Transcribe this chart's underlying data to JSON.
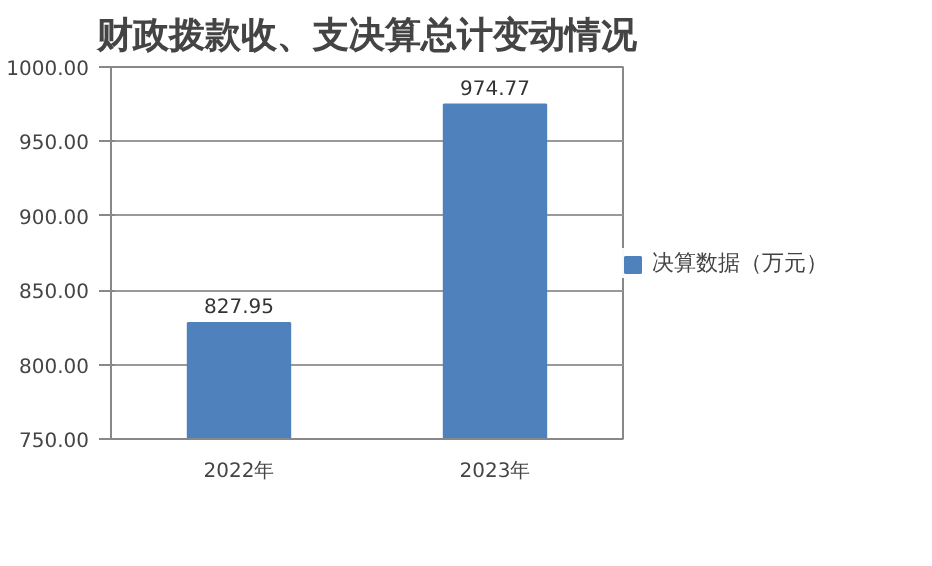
{
  "chart_data": {
    "type": "bar",
    "title": "财政拨款收、支决算总计变动情况",
    "categories": [
      "2022年",
      "2023年"
    ],
    "series": [
      {
        "name": "决算数据（万元）",
        "color": "#4f81bd",
        "values": [
          827.95,
          974.77
        ]
      }
    ],
    "ylim": [
      750,
      1000
    ],
    "yticks": [
      {
        "value": 750,
        "label": "750.00"
      },
      {
        "value": 800,
        "label": "800.00"
      },
      {
        "value": 850,
        "label": "850.00"
      },
      {
        "value": 900,
        "label": "900.00"
      },
      {
        "value": 950,
        "label": "950.00"
      },
      {
        "value": 1000,
        "label": "1000.00"
      }
    ],
    "grid": "y",
    "legend": "right",
    "data_labels": true
  }
}
